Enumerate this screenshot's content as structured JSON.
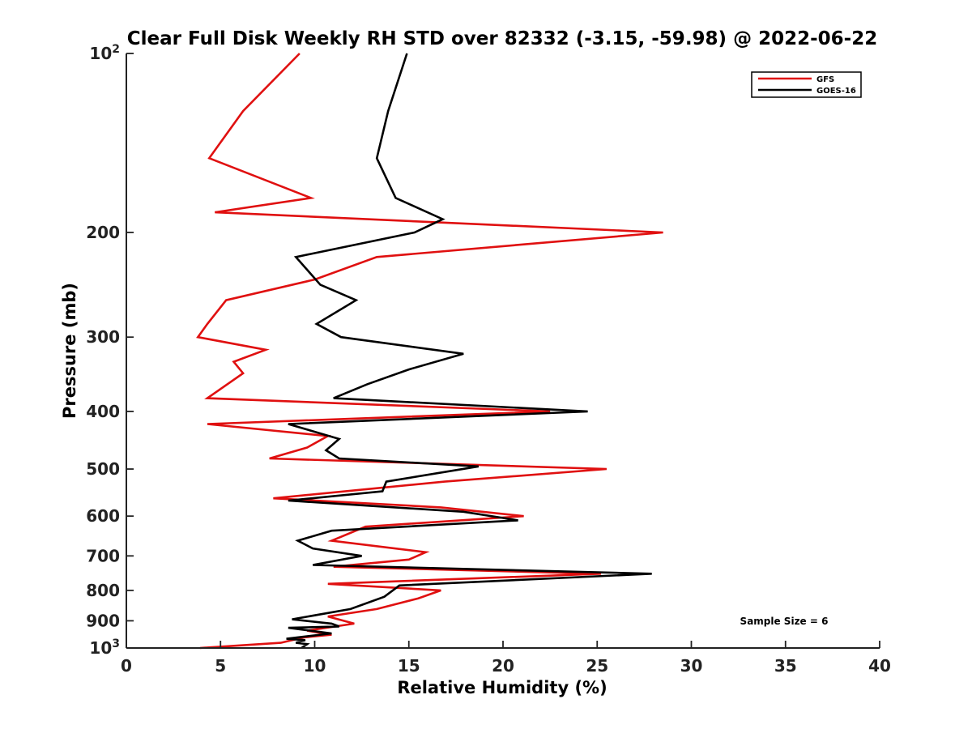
{
  "chart_data": {
    "type": "line",
    "title": "Clear Full Disk Weekly RH STD over 82332 (-3.15, -59.98) @ 2022-06-22",
    "xlabel": "Relative Humidity (%)",
    "ylabel": "Pressure (mb)",
    "xlim": [
      0,
      40
    ],
    "ylim": [
      100,
      1000
    ],
    "yscale": "log",
    "y_reversed": true,
    "x_ticks": [
      "0",
      "5",
      "10",
      "15",
      "20",
      "25",
      "30",
      "35",
      "40"
    ],
    "y_ticks": [
      {
        "value": 100,
        "label": "10",
        "sup": "2"
      },
      {
        "value": 200,
        "label": "200",
        "sup": ""
      },
      {
        "value": 300,
        "label": "300",
        "sup": ""
      },
      {
        "value": 400,
        "label": "400",
        "sup": ""
      },
      {
        "value": 500,
        "label": "500",
        "sup": ""
      },
      {
        "value": 600,
        "label": "600",
        "sup": ""
      },
      {
        "value": 700,
        "label": "700",
        "sup": ""
      },
      {
        "value": 800,
        "label": "800",
        "sup": ""
      },
      {
        "value": 900,
        "label": "900",
        "sup": ""
      },
      {
        "value": 1000,
        "label": "10",
        "sup": "3"
      }
    ],
    "grid": false,
    "legend_position": "top-right",
    "annotation": "Sample Size = 6",
    "series": [
      {
        "name": "GFS",
        "color": "#e01010",
        "points": [
          [
            9.2,
            100
          ],
          [
            6.2,
            125
          ],
          [
            4.4,
            150
          ],
          [
            9.8,
            175
          ],
          [
            4.7,
            185
          ],
          [
            28.5,
            200
          ],
          [
            13.3,
            220
          ],
          [
            10.0,
            240
          ],
          [
            5.3,
            260
          ],
          [
            4.3,
            285
          ],
          [
            3.8,
            300
          ],
          [
            7.4,
            315
          ],
          [
            5.7,
            330
          ],
          [
            6.2,
            345
          ],
          [
            4.3,
            380
          ],
          [
            22.5,
            400
          ],
          [
            4.3,
            420
          ],
          [
            10.7,
            440
          ],
          [
            9.6,
            460
          ],
          [
            7.6,
            480
          ],
          [
            25.5,
            500
          ],
          [
            16.9,
            525
          ],
          [
            7.8,
            560
          ],
          [
            16.7,
            580
          ],
          [
            21.1,
            600
          ],
          [
            12.7,
            625
          ],
          [
            10.9,
            660
          ],
          [
            15.9,
            690
          ],
          [
            15.0,
            710
          ],
          [
            11.0,
            730
          ],
          [
            25.2,
            750
          ],
          [
            10.7,
            780
          ],
          [
            16.7,
            800
          ],
          [
            15.5,
            825
          ],
          [
            13.3,
            860
          ],
          [
            10.7,
            885
          ],
          [
            12.1,
            910
          ],
          [
            9.6,
            935
          ],
          [
            10.9,
            950
          ],
          [
            9.4,
            960
          ],
          [
            8.2,
            980
          ],
          [
            3.9,
            1000
          ]
        ]
      },
      {
        "name": "GOES-16",
        "color": "#000000",
        "points": [
          [
            14.9,
            100
          ],
          [
            13.9,
            125
          ],
          [
            13.3,
            150
          ],
          [
            14.3,
            175
          ],
          [
            16.8,
            190
          ],
          [
            15.3,
            200
          ],
          [
            9.0,
            220
          ],
          [
            10.3,
            245
          ],
          [
            12.2,
            260
          ],
          [
            10.1,
            285
          ],
          [
            11.4,
            300
          ],
          [
            17.9,
            320
          ],
          [
            15.0,
            340
          ],
          [
            12.8,
            360
          ],
          [
            11.0,
            380
          ],
          [
            24.5,
            400
          ],
          [
            8.6,
            420
          ],
          [
            11.3,
            445
          ],
          [
            10.6,
            465
          ],
          [
            11.3,
            480
          ],
          [
            18.7,
            495
          ],
          [
            13.8,
            525
          ],
          [
            13.6,
            545
          ],
          [
            8.6,
            565
          ],
          [
            17.9,
            590
          ],
          [
            20.8,
            610
          ],
          [
            10.9,
            635
          ],
          [
            9.1,
            660
          ],
          [
            9.9,
            680
          ],
          [
            12.5,
            700
          ],
          [
            9.9,
            725
          ],
          [
            27.9,
            750
          ],
          [
            14.5,
            785
          ],
          [
            13.7,
            820
          ],
          [
            11.9,
            860
          ],
          [
            8.8,
            895
          ],
          [
            10.9,
            910
          ],
          [
            11.3,
            920
          ],
          [
            8.6,
            925
          ],
          [
            10.9,
            945
          ],
          [
            8.5,
            965
          ],
          [
            9.5,
            970
          ],
          [
            9.0,
            980
          ],
          [
            9.6,
            985
          ],
          [
            9.3,
            1000
          ]
        ]
      }
    ]
  }
}
